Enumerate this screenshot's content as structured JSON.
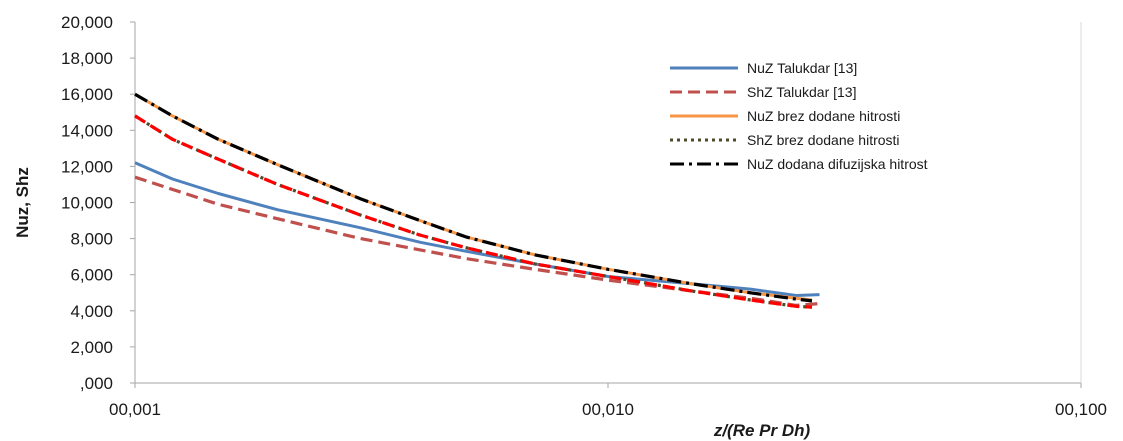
{
  "chart_data": {
    "type": "line",
    "title": "",
    "xlabel": "z/(Re Pr Dh)",
    "ylabel": "Nuz, Shz",
    "x_scale": "log",
    "xlim": [
      0.001,
      0.1
    ],
    "ylim": [
      0,
      20
    ],
    "x_ticks": [
      0.001,
      0.01,
      0.1
    ],
    "x_tick_labels": [
      "00,001",
      "00,010",
      "00,100"
    ],
    "y_ticks": [
      0,
      2,
      4,
      6,
      8,
      10,
      12,
      14,
      16,
      18,
      20
    ],
    "y_tick_labels": [
      ",000",
      "2,000",
      "4,000",
      "6,000",
      "8,000",
      "10,000",
      "12,000",
      "14,000",
      "16,000",
      "18,000",
      "20,000"
    ],
    "grid": false,
    "legend_position": "top-right",
    "series": [
      {
        "name": "NuZ Talukdar [13]",
        "color": "#4f81bd",
        "style": "solid",
        "x": [
          0.001,
          0.0012,
          0.0015,
          0.002,
          0.003,
          0.004,
          0.005,
          0.007,
          0.01,
          0.015,
          0.02,
          0.025,
          0.028
        ],
        "y": [
          12.2,
          11.3,
          10.5,
          9.6,
          8.6,
          7.8,
          7.3,
          6.6,
          5.9,
          5.5,
          5.2,
          4.85,
          4.9
        ]
      },
      {
        "name": "ShZ Talukdar [13]",
        "color": "#c0504d",
        "style": "dashed",
        "x": [
          0.001,
          0.0015,
          0.002,
          0.003,
          0.005,
          0.007,
          0.01,
          0.015,
          0.02,
          0.025,
          0.028
        ],
        "y": [
          11.4,
          9.9,
          9.1,
          8.0,
          6.9,
          6.3,
          5.7,
          5.1,
          4.7,
          4.3,
          4.4
        ]
      },
      {
        "name": "NuZ brez dodane hitrosti",
        "color": "#f79646",
        "style": "solid",
        "x": [
          0.001,
          0.0012,
          0.0015,
          0.002,
          0.003,
          0.004,
          0.005,
          0.007,
          0.01,
          0.015,
          0.02,
          0.025,
          0.027
        ],
        "y": [
          16.0,
          14.8,
          13.5,
          12.1,
          10.2,
          9.0,
          8.1,
          7.1,
          6.3,
          5.5,
          5.0,
          4.7,
          4.6
        ]
      },
      {
        "name": "ShZ brez dodane hitrosti",
        "color": "#4f4a2a",
        "style": "dotted",
        "x": [
          0.001,
          0.0012,
          0.0015,
          0.002,
          0.003,
          0.004,
          0.005,
          0.007,
          0.01,
          0.015,
          0.02,
          0.025,
          0.027
        ],
        "y": [
          14.8,
          13.5,
          12.4,
          11.0,
          9.3,
          8.2,
          7.5,
          6.6,
          5.9,
          5.1,
          4.6,
          4.25,
          4.2
        ]
      },
      {
        "name": "NuZ dodana difuzijska hitrost",
        "color": "#000000",
        "style": "dash-dot",
        "x": [
          0.001,
          0.0012,
          0.0015,
          0.002,
          0.003,
          0.004,
          0.005,
          0.007,
          0.01,
          0.015,
          0.02,
          0.025,
          0.027
        ],
        "y": [
          16.0,
          14.8,
          13.5,
          12.1,
          10.2,
          9.0,
          8.1,
          7.1,
          6.3,
          5.5,
          5.0,
          4.65,
          4.55
        ]
      },
      {
        "name": "",
        "color": "#ff0000",
        "style": "dashed",
        "x": [
          0.001,
          0.0012,
          0.0015,
          0.002,
          0.003,
          0.004,
          0.005,
          0.007,
          0.01,
          0.015,
          0.02,
          0.025,
          0.027
        ],
        "y": [
          14.8,
          13.5,
          12.4,
          11.0,
          9.3,
          8.2,
          7.5,
          6.6,
          5.9,
          5.1,
          4.6,
          4.25,
          4.2
        ]
      }
    ]
  }
}
